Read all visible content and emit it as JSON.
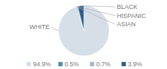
{
  "chart_data": {
    "type": "pie",
    "categories": [
      "WHITE",
      "ASIAN",
      "HISPANIC",
      "BLACK"
    ],
    "values": [
      94.9,
      0.5,
      0.7,
      3.9
    ],
    "value_labels": [
      "94.9%",
      "0.5%",
      "0.7%",
      "3.9%"
    ],
    "colors": [
      "#d6dfe8",
      "#5a8aaa",
      "#a8b8c8",
      "#2e5f8a"
    ],
    "legend": "bottom"
  }
}
